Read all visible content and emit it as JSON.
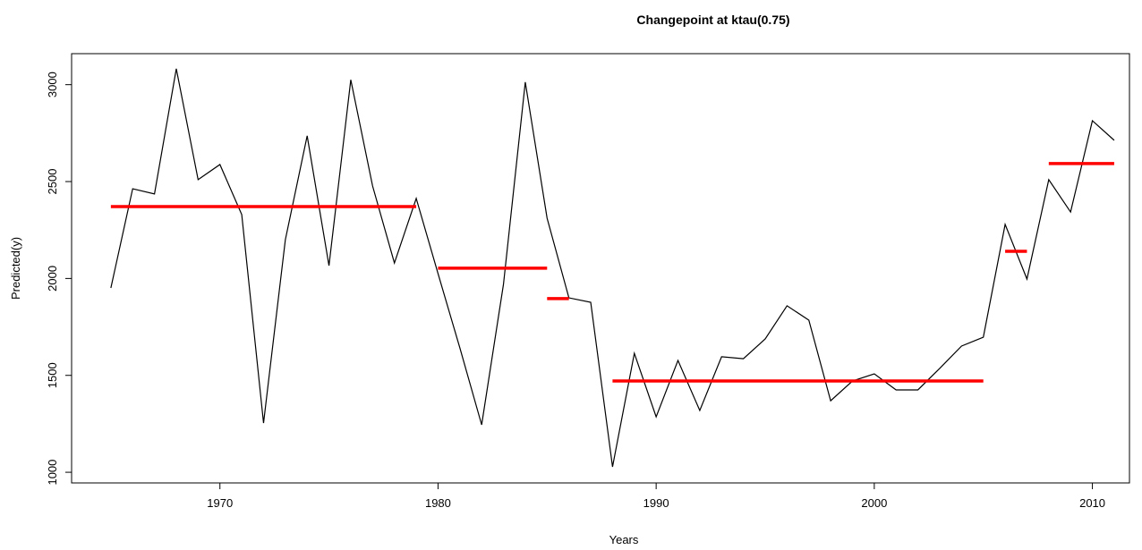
{
  "chart_data": {
    "type": "line",
    "title": "Changepoint at ktau(0.75)",
    "x_label": "Years",
    "y_label": "Predicted(y)",
    "x": [
      1965,
      1966,
      1967,
      1968,
      1969,
      1970,
      1971,
      1972,
      1973,
      1974,
      1975,
      1976,
      1977,
      1978,
      1979,
      1980,
      1981,
      1982,
      1983,
      1984,
      1985,
      1986,
      1987,
      1988,
      1989,
      1990,
      1991,
      1992,
      1993,
      1994,
      1995,
      1996,
      1997,
      1998,
      1999,
      2000,
      2001,
      2002,
      2003,
      2004,
      2005,
      2006,
      2007,
      2008,
      2009,
      2010,
      2011
    ],
    "series": [
      {
        "name": "Predicted(y)",
        "color": "#000000",
        "values": [
          1951,
          2463,
          2436,
          3082,
          2510,
          2588,
          2330,
          1254,
          2200,
          2736,
          2066,
          3025,
          2477,
          2080,
          2413,
          2025,
          1642,
          1245,
          1970,
          3013,
          2311,
          1900,
          1877,
          1028,
          1614,
          1286,
          1577,
          1319,
          1596,
          1586,
          1688,
          1859,
          1785,
          1369,
          1471,
          1508,
          1425,
          1425,
          1536,
          1651,
          1697,
          2279,
          1997,
          2510,
          2343,
          2814,
          2713
        ]
      }
    ],
    "segments": {
      "color": "#ff0000",
      "items": [
        {
          "x0": 1965,
          "x1": 1979,
          "value": 2371
        },
        {
          "x0": 1980,
          "x1": 1985,
          "value": 2053
        },
        {
          "x0": 1985,
          "x1": 1986,
          "value": 1896
        },
        {
          "x0": 1988,
          "x1": 2005,
          "value": 1471
        },
        {
          "x0": 2006,
          "x1": 2007,
          "value": 2140
        },
        {
          "x0": 2008,
          "x1": 2011,
          "value": 2593
        }
      ]
    },
    "xlim": [
      1963.2,
      2011.7
    ],
    "ylim": [
      945,
      3160
    ],
    "xticks": [
      1970,
      1980,
      1990,
      2000,
      2010
    ],
    "yticks": [
      1000,
      1500,
      2000,
      2500,
      3000
    ],
    "grid": false
  }
}
